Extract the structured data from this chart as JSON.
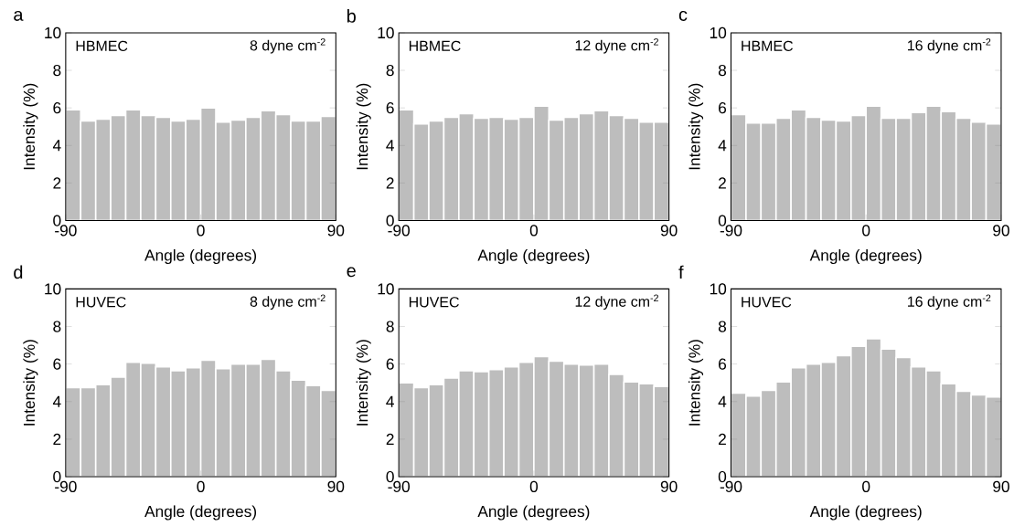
{
  "chart_data": [
    {
      "type": "histogram",
      "annotations": [
        "a",
        "HBMEC",
        "8 dyne cm$^{-2}$"
      ],
      "xlabel": "Angle (degrees)",
      "ylabel": "Intensity (%)",
      "color": "#bdbdbd",
      "bins": [
        -90,
        -80,
        -70,
        -60,
        -50,
        -40,
        -30,
        -20,
        -10,
        0,
        10,
        20,
        30,
        40,
        50,
        60,
        70,
        80,
        90
      ],
      "values": [
        5.9,
        5.3,
        5.4,
        5.6,
        5.9,
        5.6,
        5.5,
        5.3,
        5.4,
        6.0,
        5.25,
        5.35,
        5.5,
        5.85,
        5.65,
        5.3,
        5.3,
        5.55
      ],
      "xlim": [
        -90,
        90
      ],
      "ylim": [
        0,
        10
      ],
      "xticks": [
        -90,
        0,
        90
      ],
      "yticks": [
        0,
        2,
        4,
        6,
        8,
        10
      ]
    },
    {
      "type": "histogram",
      "annotations": [
        "b",
        "HBMEC",
        "12 dyne cm$^{-2}$"
      ],
      "xlabel": "Angle (degrees)",
      "ylabel": "Intensity (%)",
      "color": "#bdbdbd",
      "bins": [
        -90,
        -80,
        -70,
        -60,
        -50,
        -40,
        -30,
        -20,
        -10,
        0,
        10,
        20,
        30,
        40,
        50,
        60,
        70,
        80,
        90
      ],
      "values": [
        5.9,
        5.15,
        5.3,
        5.5,
        5.7,
        5.45,
        5.5,
        5.4,
        5.5,
        6.1,
        5.35,
        5.5,
        5.7,
        5.85,
        5.6,
        5.45,
        5.25,
        5.25
      ],
      "xlim": [
        -90,
        90
      ],
      "ylim": [
        0,
        10
      ],
      "xticks": [
        -90,
        0,
        90
      ],
      "yticks": [
        0,
        2,
        4,
        6,
        8,
        10
      ]
    },
    {
      "type": "histogram",
      "annotations": [
        "c",
        "HBMEC",
        "16 dyne cm$^{-2}$"
      ],
      "xlabel": "Angle (degrees)",
      "ylabel": "Intensity (%)",
      "color": "#bdbdbd",
      "bins": [
        -90,
        -80,
        -70,
        -60,
        -50,
        -40,
        -30,
        -20,
        -10,
        0,
        10,
        20,
        30,
        40,
        50,
        60,
        70,
        80,
        90
      ],
      "values": [
        5.65,
        5.2,
        5.2,
        5.45,
        5.9,
        5.5,
        5.35,
        5.3,
        5.6,
        6.1,
        5.45,
        5.45,
        5.75,
        6.1,
        5.8,
        5.45,
        5.25,
        5.15
      ],
      "xlim": [
        -90,
        90
      ],
      "ylim": [
        0,
        10
      ],
      "xticks": [
        -90,
        0,
        90
      ],
      "yticks": [
        0,
        2,
        4,
        6,
        8,
        10
      ]
    },
    {
      "type": "histogram",
      "annotations": [
        "d",
        "HUVEC",
        "8 dyne cm$^{-2}$"
      ],
      "xlabel": "Angle (degrees)",
      "ylabel": "Intensity (%)",
      "color": "#bdbdbd",
      "bins": [
        -90,
        -80,
        -70,
        -60,
        -50,
        -40,
        -30,
        -20,
        -10,
        0,
        10,
        20,
        30,
        40,
        50,
        60,
        70,
        80,
        90
      ],
      "values": [
        4.75,
        4.75,
        4.9,
        5.3,
        6.1,
        6.05,
        5.85,
        5.65,
        5.8,
        6.2,
        5.75,
        6.0,
        6.0,
        6.25,
        5.65,
        5.15,
        4.85,
        4.6
      ],
      "xlim": [
        -90,
        90
      ],
      "ylim": [
        0,
        10
      ],
      "xticks": [
        -90,
        0,
        90
      ],
      "yticks": [
        0,
        2,
        4,
        6,
        8,
        10
      ]
    },
    {
      "type": "histogram",
      "annotations": [
        "e",
        "HUVEC",
        "12 dyne cm$^{-2}$"
      ],
      "xlabel": "Angle (degrees)",
      "ylabel": "Intensity (%)",
      "color": "#bdbdbd",
      "bins": [
        -90,
        -80,
        -70,
        -60,
        -50,
        -40,
        -30,
        -20,
        -10,
        0,
        10,
        20,
        30,
        40,
        50,
        60,
        70,
        80,
        90
      ],
      "values": [
        5.0,
        4.75,
        4.9,
        5.25,
        5.65,
        5.6,
        5.7,
        5.85,
        6.1,
        6.4,
        6.15,
        6.0,
        5.95,
        6.0,
        5.45,
        5.05,
        4.95,
        4.8
      ],
      "xlim": [
        -90,
        90
      ],
      "ylim": [
        0,
        10
      ],
      "xticks": [
        -90,
        0,
        90
      ],
      "yticks": [
        0,
        2,
        4,
        6,
        8,
        10
      ]
    },
    {
      "type": "histogram",
      "annotations": [
        "f",
        "HUVEC",
        "16 dyne cm$^{-2}$"
      ],
      "xlabel": "Angle (degrees)",
      "ylabel": "Intensity (%)",
      "color": "#bdbdbd",
      "bins": [
        -90,
        -80,
        -70,
        -60,
        -50,
        -40,
        -30,
        -20,
        -10,
        0,
        10,
        20,
        30,
        40,
        50,
        60,
        70,
        80,
        90
      ],
      "values": [
        4.45,
        4.3,
        4.6,
        5.05,
        5.8,
        6.0,
        6.1,
        6.45,
        6.95,
        7.35,
        6.8,
        6.35,
        5.85,
        5.65,
        4.95,
        4.55,
        4.35,
        4.25
      ],
      "xlim": [
        -90,
        90
      ],
      "ylim": [
        0,
        10
      ],
      "xticks": [
        -90,
        0,
        90
      ],
      "yticks": [
        0,
        2,
        4,
        6,
        8,
        10
      ]
    }
  ]
}
